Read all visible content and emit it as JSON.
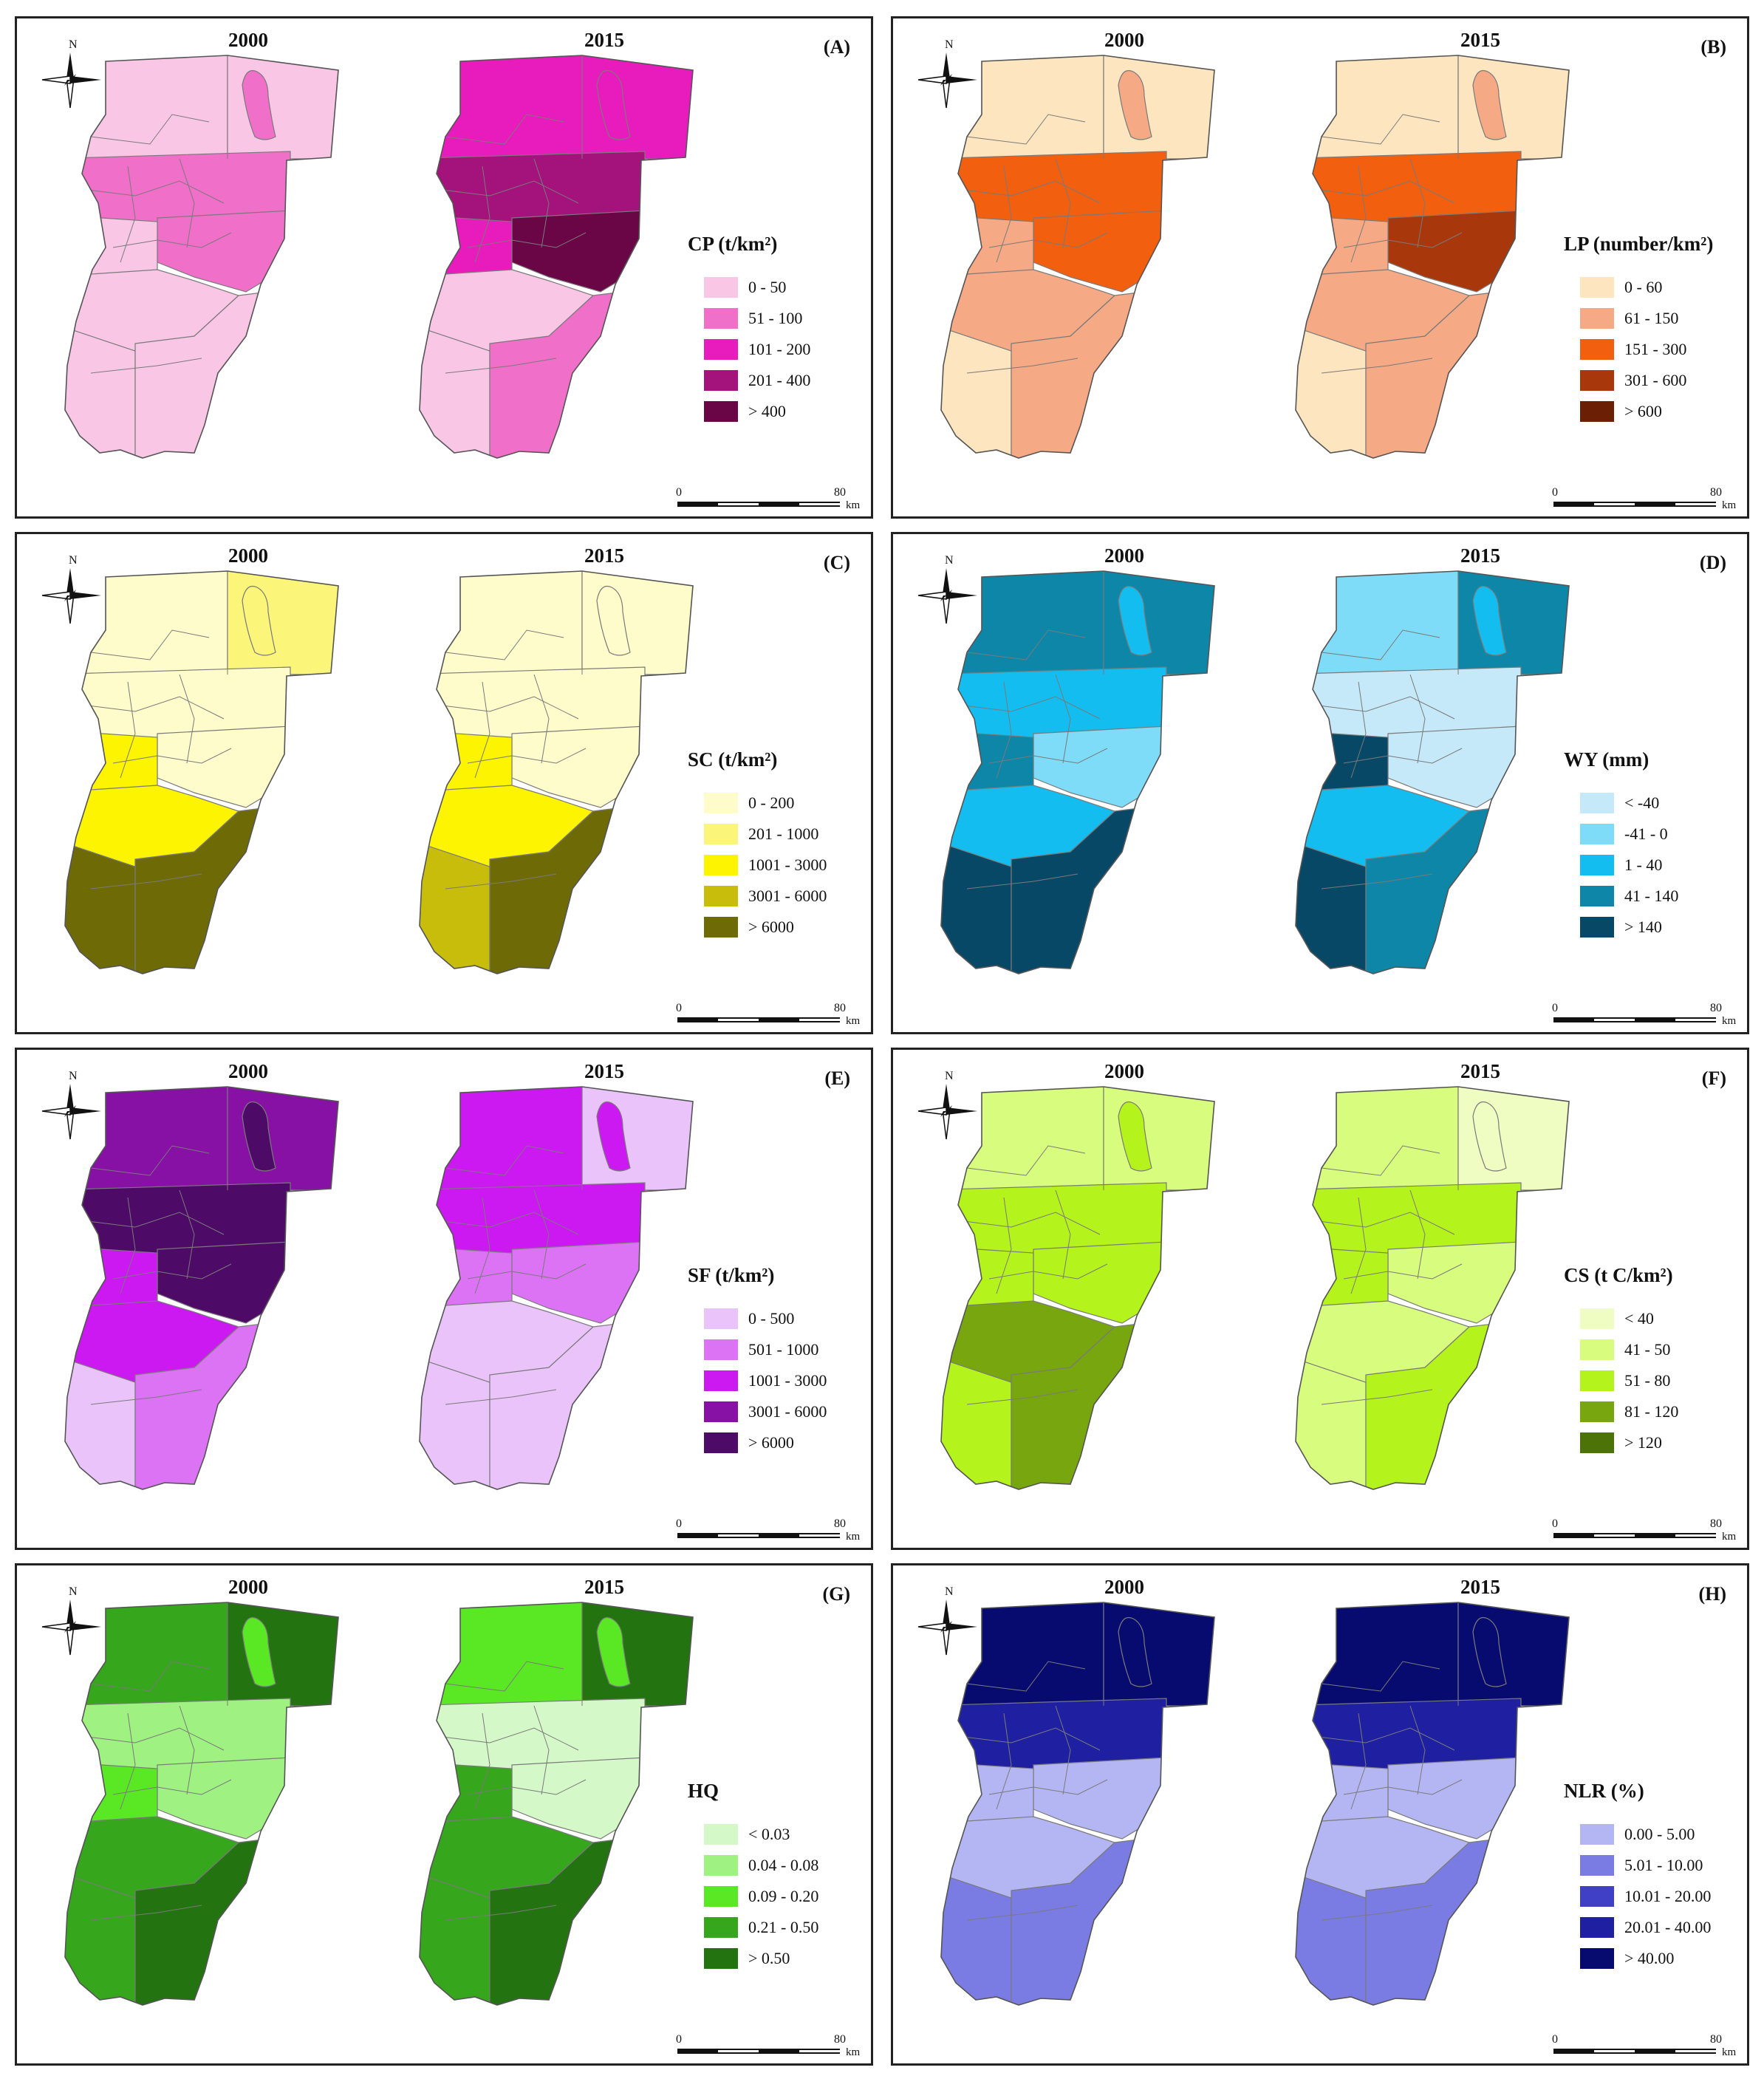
{
  "panels": [
    {
      "id": "A",
      "letter": "(A)",
      "years": [
        "2000",
        "2015"
      ],
      "north": "N",
      "legend_title": "CP (t/km²)",
      "classes": [
        {
          "label": "0 - 50",
          "color": "#f9c6e6"
        },
        {
          "label": "51 - 100",
          "color": "#f06fc9"
        },
        {
          "label": "101 - 200",
          "color": "#e81cbd"
        },
        {
          "label": "201 - 400",
          "color": "#a4127c"
        },
        {
          "label": "> 400",
          "color": "#6a0646"
        }
      ],
      "border_color": "#7a7a7a",
      "scale": {
        "start": "0",
        "end": "80",
        "unit": "km"
      }
    },
    {
      "id": "B",
      "letter": "(B)",
      "years": [
        "2000",
        "2015"
      ],
      "north": "N",
      "legend_title": "LP (number/km²)",
      "classes": [
        {
          "label": "0 - 60",
          "color": "#fde5bf"
        },
        {
          "label": "61 - 150",
          "color": "#f6a985"
        },
        {
          "label": "151 - 300",
          "color": "#f25f0e"
        },
        {
          "label": "301 - 600",
          "color": "#a8380b"
        },
        {
          "label": "> 600",
          "color": "#6b1f05"
        }
      ],
      "border_color": "#7a7a7a",
      "scale": {
        "start": "0",
        "end": "80",
        "unit": "km"
      }
    },
    {
      "id": "C",
      "letter": "(C)",
      "years": [
        "2000",
        "2015"
      ],
      "north": "N",
      "legend_title": "SC (t/km²)",
      "classes": [
        {
          "label": "0 - 200",
          "color": "#fefcca"
        },
        {
          "label": "201 - 1000",
          "color": "#fbf57a"
        },
        {
          "label": "1001 - 3000",
          "color": "#fcf400"
        },
        {
          "label": "3001 - 6000",
          "color": "#c7bd0a"
        },
        {
          "label": "> 6000",
          "color": "#6e6b07"
        }
      ],
      "border_color": "#7a7a7a",
      "scale": {
        "start": "0",
        "end": "80",
        "unit": "km"
      }
    },
    {
      "id": "D",
      "letter": "(D)",
      "years": [
        "2000",
        "2015"
      ],
      "north": "N",
      "legend_title": "WY (mm)",
      "classes": [
        {
          "label": "< -40",
          "color": "#c5e9f8"
        },
        {
          "label": "-41 - 0",
          "color": "#7fdcf8"
        },
        {
          "label": "1 - 40",
          "color": "#13bdf0"
        },
        {
          "label": "41 - 140",
          "color": "#0e86a8"
        },
        {
          "label": "> 140",
          "color": "#074867"
        }
      ],
      "border_color": "#7a7a7a",
      "scale": {
        "start": "0",
        "end": "80",
        "unit": "km"
      }
    },
    {
      "id": "E",
      "letter": "(E)",
      "years": [
        "2000",
        "2015"
      ],
      "north": "N",
      "legend_title": "SF (t/km²)",
      "classes": [
        {
          "label": "0 - 500",
          "color": "#eac3fb"
        },
        {
          "label": "501 - 1000",
          "color": "#db73f4"
        },
        {
          "label": "1001 - 3000",
          "color": "#cc19f2"
        },
        {
          "label": "3001 - 6000",
          "color": "#8611a4"
        },
        {
          "label": "> 6000",
          "color": "#4d0a67"
        }
      ],
      "border_color": "#7a7a7a",
      "scale": {
        "start": "0",
        "end": "80",
        "unit": "km"
      }
    },
    {
      "id": "F",
      "letter": "(F)",
      "years": [
        "2000",
        "2015"
      ],
      "north": "N",
      "legend_title": "CS (t C/km²)",
      "classes": [
        {
          "label": "< 40",
          "color": "#effdc2"
        },
        {
          "label": "41 - 50",
          "color": "#d8fc7e"
        },
        {
          "label": "51 - 80",
          "color": "#b4f31b"
        },
        {
          "label": "81 - 120",
          "color": "#78a60e"
        },
        {
          "label": "> 120",
          "color": "#4c7308"
        }
      ],
      "border_color": "#7a7a7a",
      "scale": {
        "start": "0",
        "end": "80",
        "unit": "km"
      }
    },
    {
      "id": "G",
      "letter": "(G)",
      "years": [
        "2000",
        "2015"
      ],
      "north": "N",
      "legend_title": "HQ",
      "classes": [
        {
          "label": "< 0.03",
          "color": "#d5f8c9"
        },
        {
          "label": "0.04 - 0.08",
          "color": "#9ff282"
        },
        {
          "label": "0.09 - 0.20",
          "color": "#5ae825"
        },
        {
          "label": "0.21 - 0.50",
          "color": "#36a61c"
        },
        {
          "label": "> 0.50",
          "color": "#237310"
        }
      ],
      "border_color": "#7a7a7a",
      "scale": {
        "start": "0",
        "end": "80",
        "unit": "km"
      }
    },
    {
      "id": "H",
      "letter": "(H)",
      "years": [
        "2000",
        "2015"
      ],
      "north": "N",
      "legend_title": "NLR (%)",
      "classes": [
        {
          "label": "0.00 - 5.00",
          "color": "#b4b6f4"
        },
        {
          "label": "5.01 - 10.00",
          "color": "#7a7ce4"
        },
        {
          "label": "10.01 - 20.00",
          "color": "#3f40c6"
        },
        {
          "label": "20.01 - 40.00",
          "color": "#1f1fa1"
        },
        {
          "label": "> 40.00",
          "color": "#070b70"
        }
      ],
      "border_color": "#7a7a7a",
      "scale": {
        "start": "0",
        "end": "80",
        "unit": "km"
      }
    }
  ]
}
